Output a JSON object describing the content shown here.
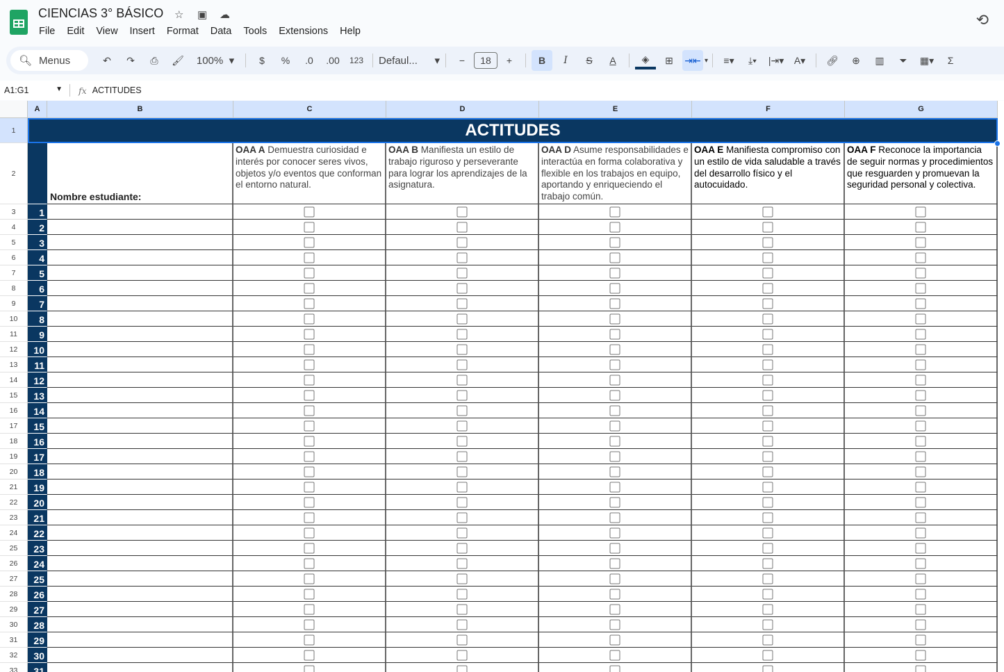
{
  "app": {
    "title": "CIENCIAS 3° BÁSICO",
    "menu": [
      "File",
      "Edit",
      "View",
      "Insert",
      "Format",
      "Data",
      "Tools",
      "Extensions",
      "Help"
    ]
  },
  "toolbar": {
    "search": "Menus",
    "zoom": "100%",
    "currency": "$",
    "percent": "%",
    "dec_dec": ".0",
    "inc_dec": ".00",
    "format_more": "123",
    "font": "Defaul...",
    "font_size": "18",
    "bold": "B",
    "italic": "I"
  },
  "formula_bar": {
    "name_box": "A1:G1",
    "fx": "fx",
    "content": "ACTITUDES"
  },
  "columns": [
    "A",
    "B",
    "C",
    "D",
    "E",
    "F",
    "G"
  ],
  "sheet": {
    "title": "ACTITUDES",
    "name_header": "Nombre estudiante:",
    "criteria": [
      {
        "code": "OAA A",
        "text": " Demuestra curiosidad e interés por conocer seres vivos, objetos y/o eventos que conforman el entorno natural."
      },
      {
        "code": "OAA B",
        "text": " Manifiesta un estilo de trabajo riguroso y perseverante para lograr los aprendizajes de la asignatura."
      },
      {
        "code": "OAA D",
        "text": " Asume responsabilidades e interactúa en forma colaborativa y flexible en los trabajos en equipo, aportando y enriqueciendo el trabajo común."
      },
      {
        "code": "OAA E",
        "text": " Manifiesta compromiso con un estilo de vida saludable a través del desarrollo físico y el autocuidado."
      },
      {
        "code": "OAA F",
        "text": " Reconoce la importancia de seguir normas y procedimientos que resguarden y promuevan la seguridad personal y colectiva."
      }
    ],
    "students": [
      1,
      2,
      3,
      4,
      5,
      6,
      7,
      8,
      9,
      10,
      11,
      12,
      13,
      14,
      15,
      16,
      17,
      18,
      19,
      20,
      21,
      22,
      23,
      24,
      25,
      26,
      27,
      28,
      29,
      30,
      31
    ],
    "checked": false
  },
  "colors": {
    "header_bg": "#0a3761",
    "selection": "#1a73e8",
    "col_header": "#d3e3fd"
  }
}
